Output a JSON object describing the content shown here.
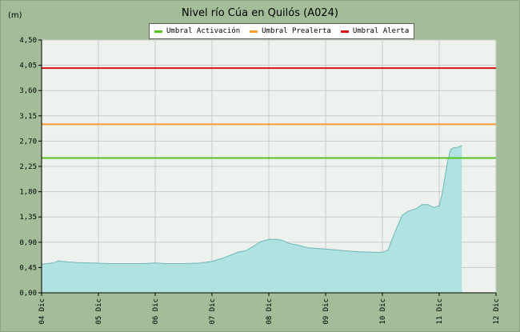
{
  "chart_data": {
    "type": "area",
    "title": "Nivel río Cúa en Quilós  (A024)",
    "unit_label": "(m)",
    "y_ticks": [
      "0,00",
      "0,45",
      "0,90",
      "1,35",
      "1,80",
      "2,25",
      "2,70",
      "3,15",
      "3,60",
      "4,05",
      "4,50"
    ],
    "ylim": [
      0,
      4.5
    ],
    "x_ticks": [
      "04 Dic",
      "05 Dic",
      "06 Dic",
      "07 Dic",
      "08 Dic",
      "09 Dic",
      "10 Dic",
      "11 Dic",
      "12 Dic"
    ],
    "xlim": [
      0,
      8
    ],
    "grid": true,
    "legend_position": "top-center",
    "colors": {
      "area_fill": "#b0e2e2",
      "area_line": "#6fb6b6",
      "plot_bg": "#eef2ee",
      "grid": "#c9c9c9"
    },
    "thresholds": [
      {
        "name": "Umbral Activación",
        "value": 2.4,
        "color": "#55c21e"
      },
      {
        "name": "Umbral Prealerta",
        "value": 3.0,
        "color": "#ff9a2e"
      },
      {
        "name": "Umbral Alerta",
        "value": 4.0,
        "color": "#dd1111"
      }
    ],
    "series": [
      {
        "x": [
          0,
          0.1,
          0.2,
          0.3,
          0.35,
          0.45,
          0.6,
          0.9,
          1.2,
          1.5,
          1.8,
          2.0,
          2.2,
          2.5,
          2.8,
          3.0,
          3.2,
          3.35,
          3.45,
          3.6,
          3.75,
          3.85,
          4.0,
          4.15,
          4.25,
          4.35,
          4.5,
          4.7,
          5.0,
          5.3,
          5.6,
          5.9,
          6.0,
          6.1,
          6.15,
          6.25,
          6.35,
          6.45,
          6.6,
          6.7,
          6.8,
          6.9,
          7.0,
          7.05,
          7.1,
          7.15,
          7.2,
          7.25,
          7.3,
          7.4
        ],
        "y": [
          0.51,
          0.52,
          0.53,
          0.57,
          0.56,
          0.55,
          0.54,
          0.53,
          0.52,
          0.52,
          0.52,
          0.53,
          0.52,
          0.52,
          0.53,
          0.56,
          0.62,
          0.68,
          0.72,
          0.75,
          0.84,
          0.91,
          0.95,
          0.95,
          0.93,
          0.88,
          0.85,
          0.8,
          0.78,
          0.75,
          0.73,
          0.72,
          0.72,
          0.76,
          0.9,
          1.15,
          1.38,
          1.45,
          1.5,
          1.57,
          1.57,
          1.52,
          1.55,
          1.75,
          2.05,
          2.35,
          2.55,
          2.58,
          2.58,
          2.62
        ]
      }
    ]
  }
}
